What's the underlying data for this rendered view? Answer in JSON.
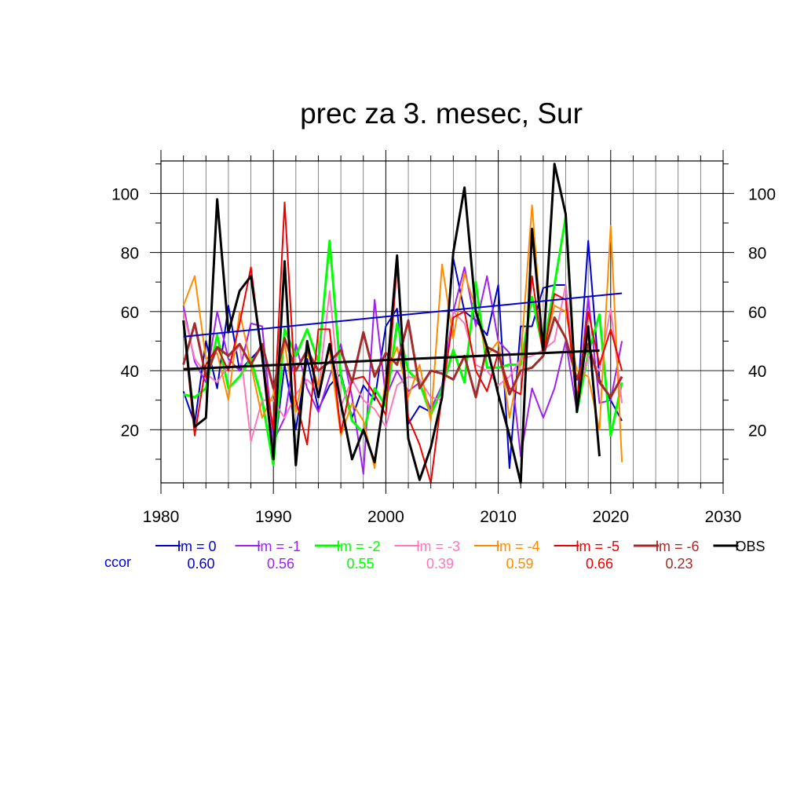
{
  "chart_data": {
    "type": "line",
    "title": "prec za 3. mesec, Sur",
    "xlabel": "",
    "ylabel": "",
    "xlim": [
      1980,
      2030
    ],
    "ylim": [
      2,
      111
    ],
    "x_ticks": [
      1980,
      1990,
      2000,
      2010,
      2020,
      2030
    ],
    "y_ticks": [
      20,
      40,
      60,
      80,
      100
    ],
    "grid": true,
    "legend_position": "bottom",
    "ccor_label": "ccor",
    "x": [
      1982,
      1983,
      1984,
      1985,
      1986,
      1987,
      1988,
      1989,
      1990,
      1991,
      1992,
      1993,
      1994,
      1995,
      1996,
      1997,
      1998,
      1999,
      2000,
      2001,
      2002,
      2003,
      2004,
      2005,
      2006,
      2007,
      2008,
      2009,
      2010,
      2011,
      2012,
      2013,
      2014,
      2015,
      2016,
      2017,
      2018,
      2019,
      2020,
      2021
    ],
    "series": [
      {
        "name": "lm = 0",
        "ccor": "0.60",
        "color": "#0000cc",
        "width": 2,
        "values": [
          33,
          22,
          50,
          34,
          62,
          40,
          44,
          48,
          10,
          42,
          20,
          44,
          27,
          35,
          39,
          24,
          35,
          30,
          55,
          61,
          22,
          28,
          26,
          33,
          78,
          60,
          57,
          52,
          69,
          7,
          55,
          55,
          68,
          69,
          69,
          27,
          84,
          37,
          30,
          23
        ],
        "trend": [
          51.5,
          66.2
        ]
      },
      {
        "name": "lm = -1",
        "ccor": "0.56",
        "color": "#a020f0",
        "width": 2,
        "values": [
          62,
          43,
          36,
          60,
          44,
          40,
          56,
          55,
          16,
          24,
          49,
          34,
          26,
          38,
          49,
          31,
          5,
          64,
          31,
          40,
          33,
          36,
          27,
          35,
          60,
          75,
          55,
          72,
          50,
          46,
          11,
          34,
          24,
          34,
          50,
          26,
          65,
          29,
          30,
          50
        ],
        "trend": null
      },
      {
        "name": "lm = -2",
        "ccor": "0.55",
        "color": "#00ff00",
        "width": 3,
        "values": [
          32,
          31,
          34,
          52,
          34,
          38,
          44,
          30,
          8,
          54,
          45,
          54,
          43,
          84,
          38,
          23,
          19,
          34,
          28,
          56,
          40,
          36,
          25,
          34,
          47,
          36,
          70,
          41,
          41,
          42,
          42,
          65,
          47,
          69,
          92,
          26,
          46,
          59,
          18,
          36
        ],
        "trend": null
      },
      {
        "name": "lm = -3",
        "ccor": "0.39",
        "color": "#ff77bb",
        "width": 2,
        "values": [
          60,
          44,
          39,
          36,
          42,
          49,
          16,
          30,
          30,
          24,
          32,
          37,
          33,
          67,
          28,
          37,
          30,
          27,
          21,
          35,
          38,
          37,
          31,
          30,
          60,
          56,
          42,
          40,
          35,
          38,
          44,
          45,
          47,
          50,
          69,
          31,
          45,
          40,
          61,
          29
        ],
        "trend": null
      },
      {
        "name": "lm = -4",
        "ccor": "0.59",
        "color": "#ff8c00",
        "width": 2,
        "values": [
          62,
          72,
          44,
          46,
          30,
          60,
          42,
          24,
          32,
          49,
          26,
          46,
          35,
          47,
          18,
          29,
          23,
          7,
          38,
          48,
          31,
          42,
          23,
          76,
          51,
          73,
          61,
          45,
          50,
          24,
          44,
          96,
          47,
          62,
          60,
          40,
          38,
          20,
          89,
          9
        ],
        "trend": null
      },
      {
        "name": "lm = -5",
        "ccor": "0.66",
        "color": "#ee0000",
        "width": 2,
        "values": [
          56,
          18,
          42,
          48,
          40,
          56,
          75,
          44,
          20,
          97,
          30,
          15,
          54,
          54,
          19,
          37,
          38,
          32,
          25,
          76,
          24,
          15,
          2,
          32,
          58,
          60,
          40,
          33,
          46,
          34,
          32,
          72,
          45,
          66,
          64,
          30,
          60,
          42,
          54,
          40
        ],
        "trend": null
      },
      {
        "name": "lm = -6",
        "ccor": "0.23",
        "color": "#a52a2a",
        "width": 3,
        "values": [
          42,
          56,
          38,
          48,
          45,
          49,
          42,
          49,
          34,
          51,
          40,
          47,
          40,
          43,
          47,
          36,
          53,
          38,
          46,
          42,
          57,
          34,
          40,
          39,
          37,
          45,
          31,
          48,
          46,
          32,
          40,
          41,
          45,
          58,
          51,
          37,
          49,
          36,
          31,
          38
        ],
        "trend": null
      },
      {
        "name": "OBS",
        "ccor": "",
        "color": "#000000",
        "width": 3,
        "values": [
          57,
          21,
          24,
          98,
          53,
          67,
          72,
          45,
          10,
          77,
          8,
          50,
          31,
          49,
          29,
          10,
          20,
          9,
          34,
          79,
          17,
          3,
          14,
          31,
          80,
          102,
          60,
          48,
          32,
          18,
          2,
          88,
          47,
          110,
          93,
          26,
          55,
          11,
          null,
          null
        ],
        "trend": [
          40.5,
          46.8
        ]
      }
    ]
  }
}
